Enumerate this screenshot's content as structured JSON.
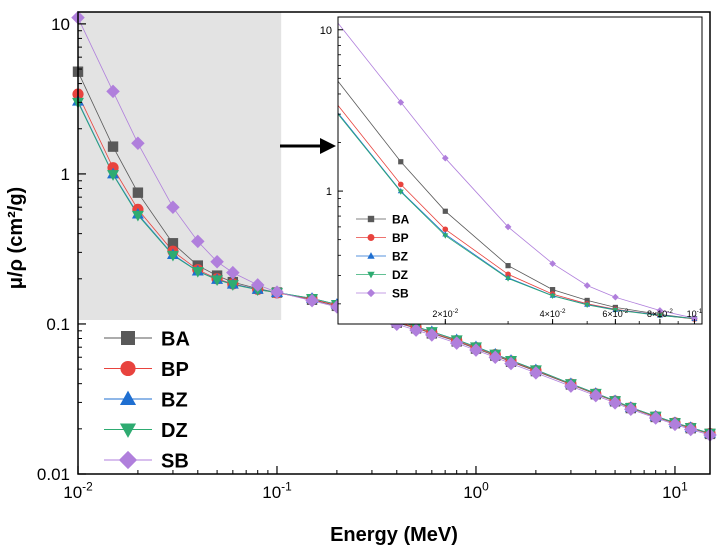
{
  "chart_data": [
    {
      "type": "line",
      "id": "main",
      "xlabel": "Energy (MeV)",
      "ylabel": "μ/ρ (cm²/g)",
      "xscale": "log",
      "yscale": "log",
      "xlim": [
        0.01,
        15
      ],
      "ylim": [
        0.01,
        12
      ],
      "xticks": [
        {
          "v": 0.01,
          "base": "10",
          "exp": "-2"
        },
        {
          "v": 0.1,
          "base": "10",
          "exp": "-1"
        },
        {
          "v": 1,
          "base": "10",
          "exp": "0"
        },
        {
          "v": 10,
          "base": "10",
          "exp": "1"
        }
      ],
      "yticks": [
        {
          "v": 0.01,
          "label": "0.01"
        },
        {
          "v": 0.1,
          "label": "0.1"
        },
        {
          "v": 1,
          "label": "1"
        },
        {
          "v": 10,
          "label": "10"
        }
      ],
      "x": [
        0.01,
        0.015,
        0.02,
        0.03,
        0.04,
        0.05,
        0.06,
        0.08,
        0.1,
        0.15,
        0.2,
        0.3,
        0.4,
        0.5,
        0.6,
        0.8,
        1,
        1.25,
        1.5,
        2,
        3,
        4,
        5,
        6,
        8,
        10,
        12,
        15
      ],
      "legend_position": "bottom-left",
      "series": [
        {
          "name": "BA",
          "color": "#595959",
          "marker": "square",
          "values": [
            4.8,
            1.52,
            0.75,
            0.345,
            0.245,
            0.21,
            0.19,
            0.172,
            0.162,
            0.145,
            0.132,
            0.114,
            0.102,
            0.0935,
            0.0865,
            0.0765,
            0.0685,
            0.0615,
            0.056,
            0.0485,
            0.0395,
            0.034,
            0.0305,
            0.0275,
            0.024,
            0.0218,
            0.0202,
            0.0185
          ]
        },
        {
          "name": "BP",
          "color": "#e8433e",
          "marker": "circle",
          "values": [
            3.4,
            1.1,
            0.58,
            0.305,
            0.23,
            0.2,
            0.185,
            0.17,
            0.161,
            0.146,
            0.133,
            0.115,
            0.103,
            0.0945,
            0.0875,
            0.0775,
            0.0695,
            0.0625,
            0.0565,
            0.049,
            0.0397,
            0.0342,
            0.0306,
            0.0276,
            0.0241,
            0.0219,
            0.0203,
            0.0186
          ]
        },
        {
          "name": "BZ",
          "color": "#1f6fd1",
          "marker": "triangle-up",
          "values": [
            3.05,
            1.0,
            0.54,
            0.29,
            0.225,
            0.198,
            0.184,
            0.17,
            0.162,
            0.148,
            0.135,
            0.117,
            0.105,
            0.096,
            0.089,
            0.0785,
            0.0705,
            0.063,
            0.0572,
            0.0495,
            0.04,
            0.0345,
            0.0308,
            0.0278,
            0.0243,
            0.022,
            0.0204,
            0.0187
          ]
        },
        {
          "name": "DZ",
          "color": "#2eab71",
          "marker": "triangle-down",
          "values": [
            3.0,
            0.99,
            0.53,
            0.287,
            0.224,
            0.197,
            0.183,
            0.169,
            0.162,
            0.148,
            0.135,
            0.117,
            0.105,
            0.096,
            0.089,
            0.0785,
            0.0705,
            0.063,
            0.0572,
            0.0495,
            0.04,
            0.0345,
            0.0308,
            0.0278,
            0.0243,
            0.022,
            0.0204,
            0.0187
          ]
        },
        {
          "name": "SB",
          "color": "#b07fdc",
          "marker": "diamond",
          "values": [
            11.0,
            3.55,
            1.6,
            0.6,
            0.355,
            0.26,
            0.22,
            0.182,
            0.163,
            0.143,
            0.13,
            0.111,
            0.0995,
            0.091,
            0.0845,
            0.0745,
            0.067,
            0.06,
            0.0545,
            0.0472,
            0.0385,
            0.0333,
            0.0298,
            0.027,
            0.0236,
            0.0214,
            0.0198,
            0.0182
          ]
        }
      ]
    },
    {
      "type": "line",
      "id": "inset",
      "xscale": "log",
      "yscale": "log",
      "xlim": [
        0.01,
        0.105
      ],
      "ylim": [
        0.15,
        12
      ],
      "xticks": [
        {
          "v": 0.02,
          "base": "2×10",
          "exp": "-2"
        },
        {
          "v": 0.04,
          "base": "4×10",
          "exp": "-2"
        },
        {
          "v": 0.06,
          "base": "6×10",
          "exp": "-2"
        },
        {
          "v": 0.08,
          "base": "8×10",
          "exp": "-2"
        },
        {
          "v": 0.1,
          "base": "10",
          "exp": "-1"
        }
      ],
      "yticks": [
        {
          "v": 1,
          "label": "1"
        },
        {
          "v": 10,
          "label": "10"
        }
      ],
      "x": [
        0.015,
        0.02,
        0.03,
        0.04,
        0.05,
        0.06,
        0.08,
        0.1
      ],
      "legend_position": "bottom-left"
    }
  ]
}
